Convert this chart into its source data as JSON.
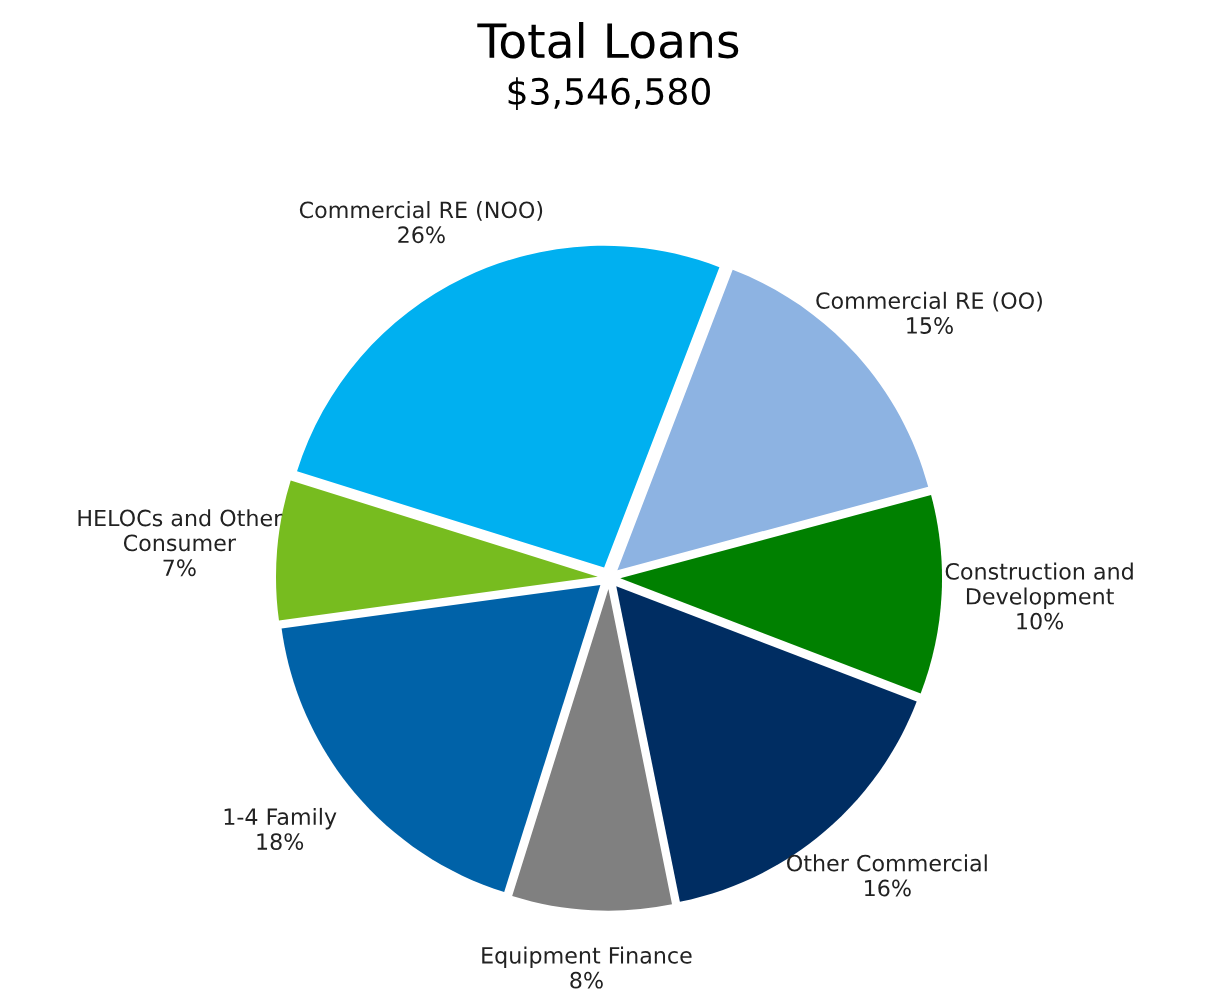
{
  "chart_data": {
    "type": "pie",
    "title": "Total Loans",
    "subtitle": "$3,546,580",
    "categories": [
      "Commercial RE (OO)",
      "Construction and\nDevelopment",
      "Other Commercial",
      "Equipment Finance",
      "1-4 Family",
      "HELOCs and Other\nConsumer",
      "Commercial RE (NOO)"
    ],
    "values": [
      15,
      10,
      16,
      8,
      18,
      7,
      26
    ],
    "colors": [
      "#8db3e2",
      "#008000",
      "#002d62",
      "#808080",
      "#0062a8",
      "#77bc1f",
      "#00b0f0"
    ],
    "value_labels": [
      "15%",
      "10%",
      "16%",
      "8%",
      "18%",
      "7%",
      "26%"
    ],
    "legend": false
  }
}
